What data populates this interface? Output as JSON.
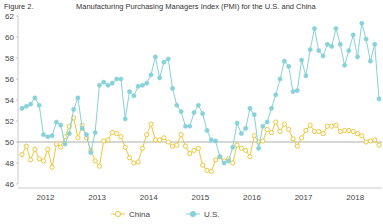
{
  "chart_data": {
    "type": "line",
    "figure_label": "Figure 2.",
    "title": "Manufacturing Purchasing Managers Index (PMI) for the U.S. and China",
    "categories": [
      null,
      null,
      null,
      null,
      null,
      "2012",
      null,
      null,
      null,
      null,
      null,
      null,
      null,
      null,
      null,
      null,
      null,
      "2013",
      null,
      null,
      null,
      null,
      null,
      null,
      null,
      null,
      null,
      null,
      null,
      "2014",
      null,
      null,
      null,
      null,
      null,
      null,
      null,
      null,
      null,
      null,
      null,
      "2015",
      null,
      null,
      null,
      null,
      null,
      null,
      null,
      null,
      null,
      null,
      null,
      "2016",
      null,
      null,
      null,
      null,
      null,
      null,
      null,
      null,
      null,
      null,
      null,
      "2017",
      null,
      null,
      null,
      null,
      null,
      null,
      null,
      null,
      null,
      null,
      null,
      "2018",
      null,
      null,
      null,
      null,
      null,
      null
    ],
    "series": [
      {
        "name": "China",
        "color": "#eec73c",
        "marker": "circle-open",
        "values": [
          48.8,
          49.6,
          48.3,
          49.3,
          48.4,
          48.2,
          49.3,
          47.6,
          49.8,
          49.5,
          50.5,
          51.5,
          52.3,
          50.4,
          51.6,
          50.4,
          49.2,
          48.2,
          47.7,
          50.1,
          50.2,
          50.9,
          50.8,
          50.5,
          49.5,
          48.5,
          48.0,
          48.1,
          49.4,
          50.7,
          51.7,
          50.2,
          50.2,
          50.4,
          50.0,
          49.6,
          49.7,
          50.7,
          49.6,
          48.9,
          49.2,
          49.4,
          47.8,
          47.3,
          47.2,
          48.3,
          48.6,
          48.2,
          48.4,
          48.0,
          49.7,
          49.4,
          49.2,
          48.6,
          50.6,
          50.0,
          50.1,
          51.2,
          50.9,
          51.9,
          51.0,
          51.7,
          51.2,
          50.3,
          49.6,
          50.4,
          51.1,
          51.6,
          51.0,
          51.0,
          50.8,
          51.5,
          51.5,
          51.6,
          51.0,
          51.1,
          51.1,
          51.0,
          50.8,
          50.6,
          50.0,
          50.1,
          50.2,
          49.7
        ]
      },
      {
        "name": "U.S.",
        "color": "#86d2d8",
        "marker": "circle",
        "values": [
          53.2,
          53.4,
          53.6,
          54.2,
          53.5,
          50.7,
          50.5,
          50.6,
          51.9,
          51.6,
          49.8,
          50.8,
          53.1,
          54.2,
          51.3,
          50.7,
          49.0,
          50.9,
          55.4,
          55.7,
          55.4,
          55.6,
          56.0,
          56.0,
          52.2,
          54.8,
          54.4,
          55.3,
          55.4,
          55.6,
          56.4,
          58.1,
          56.1,
          57.6,
          57.9,
          55.1,
          53.5,
          52.9,
          51.5,
          51.5,
          52.8,
          53.5,
          52.7,
          51.1,
          50.2,
          50.1,
          48.6,
          48.0,
          48.2,
          49.5,
          51.8,
          50.8,
          51.3,
          53.2,
          52.6,
          49.4,
          51.5,
          51.9,
          53.2,
          54.5,
          56.0,
          57.7,
          57.2,
          54.8,
          54.9,
          57.8,
          56.3,
          58.8,
          60.8,
          58.7,
          58.2,
          59.3,
          59.1,
          60.8,
          59.3,
          57.3,
          58.7,
          60.2,
          58.1,
          61.3,
          59.8,
          57.7,
          59.3,
          54.1
        ]
      }
    ],
    "ylim": [
      46,
      62
    ],
    "yticks": [
      46,
      48,
      50,
      52,
      54,
      56,
      58,
      60,
      62
    ],
    "reference_line": 50,
    "grid": false,
    "legend": "bottom"
  }
}
